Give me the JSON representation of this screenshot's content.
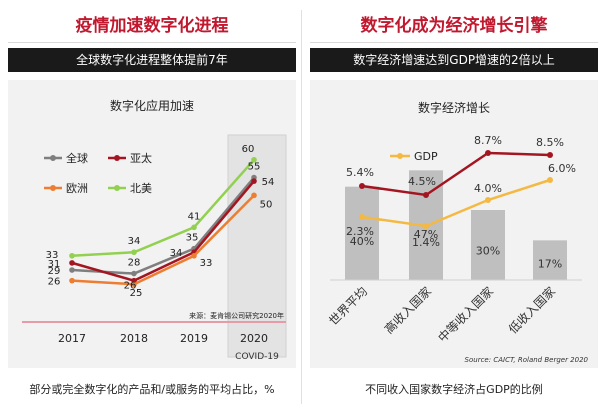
{
  "left": {
    "title": "疫情加速数字化进程",
    "subtitle": "全球数字化进程整体提前7年",
    "footer": "部分或完全数字化的产品和/或服务的平均占比，%",
    "chart_data": {
      "type": "line",
      "title": "数字化应用加速",
      "categories": [
        "2017",
        "2018",
        "2019",
        "2020"
      ],
      "annotation": "COVID-19",
      "source": "来源：麦肯锡公司研究2020年",
      "ylim": [
        20,
        65
      ],
      "series": [
        {
          "name": "全球",
          "color": "#7f7f7f",
          "values": [
            29,
            28,
            35,
            55
          ]
        },
        {
          "name": "亚太",
          "color": "#a31621",
          "values": [
            31,
            26,
            34,
            54
          ]
        },
        {
          "name": "欧洲",
          "color": "#ed7d31",
          "values": [
            26,
            25,
            33,
            50
          ]
        },
        {
          "name": "北美",
          "color": "#92d050",
          "values": [
            33,
            34,
            41,
            60
          ]
        }
      ]
    }
  },
  "right": {
    "title": "数字化成为经济增长引擎",
    "subtitle": "数字经济增速达到GDP增速的2倍以上",
    "footer": "不同收入国家数字经济占GDP的比例",
    "chart_data": {
      "type": "bar",
      "title": "数字经济增长",
      "categories": [
        "世界平均",
        "高收入国家",
        "中等收入国家",
        "低收入国家"
      ],
      "source": "Source:  CAICT, Roland Berger 2020",
      "bar_values": [
        40,
        47,
        30,
        17
      ],
      "bar_labels": [
        "40%",
        "47%",
        "30%",
        "17%"
      ],
      "bar_color": "#bfbfbf",
      "series": [
        {
          "name": "GDP",
          "color": "#f4b942",
          "values": [
            2.3,
            1.4,
            4.0,
            6.0
          ],
          "labels": [
            "2.3%",
            "1.4%",
            "4.0%",
            "6.0%"
          ]
        },
        {
          "name": "",
          "color": "#a31621",
          "values": [
            5.4,
            4.5,
            8.7,
            8.5
          ],
          "labels": [
            "5.4%",
            "4.5%",
            "8.7%",
            "8.5%"
          ]
        }
      ],
      "line_ylim": [
        -1,
        10
      ],
      "bar_ylim": [
        0,
        60
      ]
    }
  }
}
